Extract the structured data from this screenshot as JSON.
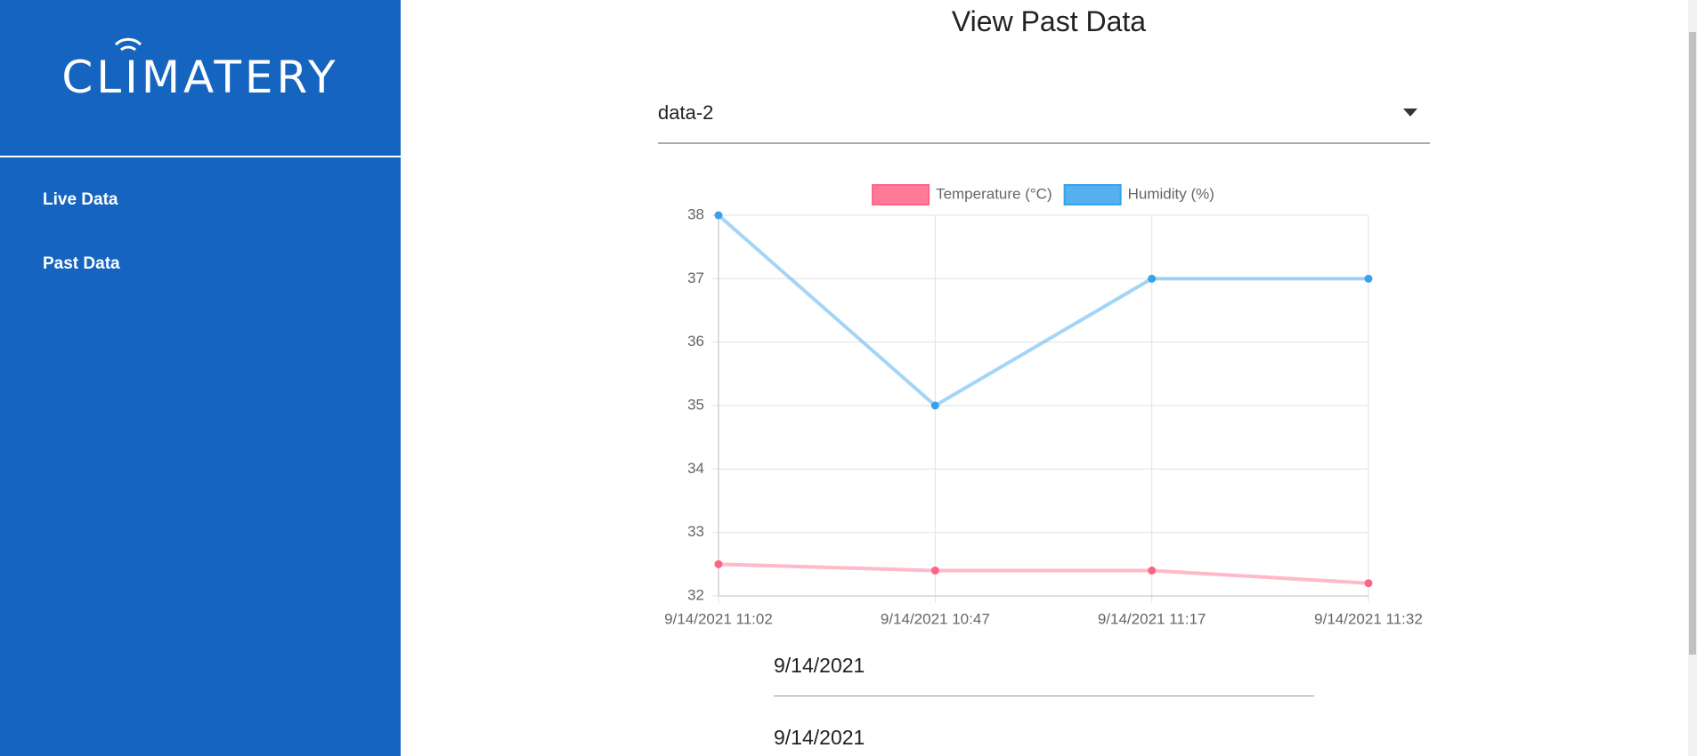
{
  "sidebar": {
    "logo": "CLIMATERY",
    "nav": [
      "Live Data",
      "Past Data"
    ]
  },
  "main": {
    "title": "View Past Data",
    "select_value": "data-2",
    "date_fields": [
      "9/14/2021",
      "9/14/2021"
    ]
  },
  "chart_data": {
    "type": "line",
    "categories": [
      "9/14/2021 11:02",
      "9/14/2021 10:47",
      "9/14/2021 11:17",
      "9/14/2021 11:32"
    ],
    "series": [
      {
        "name": "Temperature (°C)",
        "color": "#ff6384",
        "values": [
          32.5,
          32.4,
          32.4,
          32.2
        ]
      },
      {
        "name": "Humidity (%)",
        "color": "#36a2eb",
        "values": [
          38,
          35,
          37,
          37
        ]
      }
    ],
    "ylim": [
      32,
      38
    ],
    "yticks": [
      32,
      33,
      34,
      35,
      36,
      37,
      38
    ],
    "grid": true
  }
}
